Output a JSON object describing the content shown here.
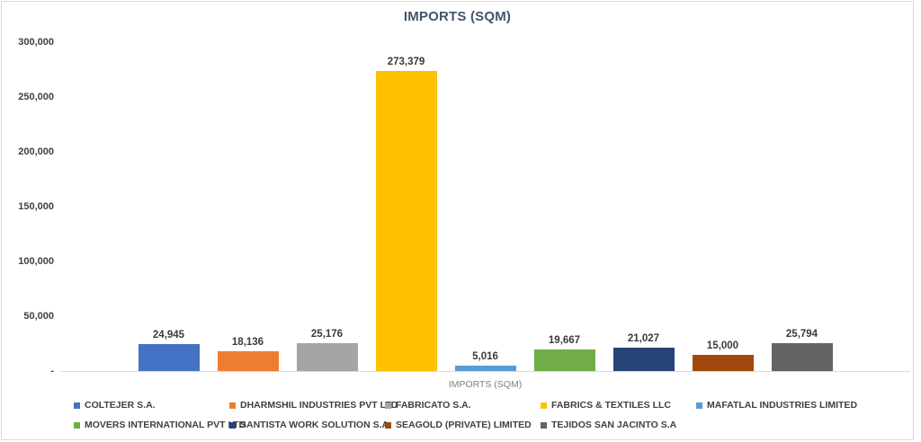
{
  "chart_data": {
    "type": "bar",
    "title": "IMPORTS (SQM)",
    "xlabel": "IMPORTS (SQM)",
    "ylabel": "",
    "ylim": [
      0,
      300000
    ],
    "y_tick_step": 50000,
    "y_tick_labels": [
      "300,000",
      "250,000",
      "200,000",
      "150,000",
      "100,000",
      "50,000",
      "-"
    ],
    "grid": false,
    "legend_position": "bottom",
    "series": [
      {
        "name": "COLTEJER S.A.",
        "value": 24945,
        "label": "24,945",
        "color": "#4472C4"
      },
      {
        "name": "DHARMSHIL INDUSTRIES PVT LTD",
        "value": 18136,
        "label": "18,136",
        "color": "#ED7D31"
      },
      {
        "name": "FABRICATO S.A.",
        "value": 25176,
        "label": "25,176",
        "color": "#A5A5A5"
      },
      {
        "name": "FABRICS & TEXTILES LLC",
        "value": 273379,
        "label": "273,379",
        "color": "#FFC000"
      },
      {
        "name": "MAFATLAL INDUSTRIES LIMITED",
        "value": 5016,
        "label": "5,016",
        "color": "#5B9BD5"
      },
      {
        "name": "MOVERS INTERNATIONAL PVT LTD",
        "value": 19667,
        "label": "19,667",
        "color": "#70AD47"
      },
      {
        "name": "SANTISTA WORK SOLUTION S.A.",
        "value": 21027,
        "label": "21,027",
        "color": "#264478"
      },
      {
        "name": "SEAGOLD (PRIVATE) LIMITED",
        "value": 15000,
        "label": "15,000",
        "color": "#9E480E"
      },
      {
        "name": "TEJIDOS SAN JACINTO S.A",
        "value": 25794,
        "label": "25,794",
        "color": "#636363"
      }
    ]
  }
}
